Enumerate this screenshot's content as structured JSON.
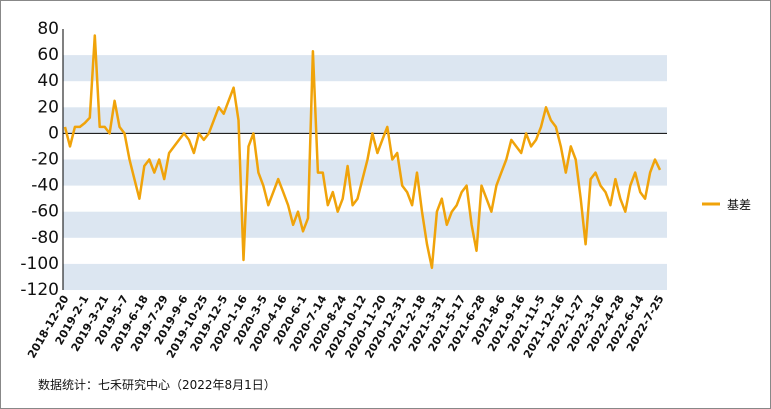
{
  "chart_data": {
    "type": "line",
    "source": "数据统计：七禾研究中心（2022年8月1日）",
    "categories": [
      "2018-12-20",
      null,
      null,
      null,
      "2019-2-1",
      null,
      null,
      null,
      "2019-3-21",
      null,
      null,
      null,
      "2019-5-7",
      null,
      null,
      null,
      "2019-6-18",
      null,
      null,
      null,
      "2019-7-29",
      null,
      null,
      null,
      "2019-9-6",
      null,
      null,
      null,
      "2019-10-25",
      null,
      null,
      null,
      "2019-12-5",
      null,
      null,
      null,
      "2020-1-16",
      null,
      null,
      null,
      "2020-3-5",
      null,
      null,
      null,
      "2020-4-16",
      null,
      null,
      null,
      "2020-6-1",
      null,
      null,
      null,
      "2020-7-14",
      null,
      null,
      null,
      "2020-8-24",
      null,
      null,
      null,
      "2020-10-12",
      null,
      null,
      null,
      "2020-11-20",
      null,
      null,
      null,
      "2020-12-31",
      null,
      null,
      null,
      "2021-2-18",
      null,
      null,
      null,
      "2021-3-31",
      null,
      null,
      null,
      "2021-5-17",
      null,
      null,
      null,
      "2021-6-28",
      null,
      null,
      null,
      "2021-8-6",
      null,
      null,
      null,
      "2021-9-16",
      null,
      null,
      null,
      "2021-11-5",
      null,
      null,
      null,
      "2021-12-16",
      null,
      null,
      null,
      "2022-1-27",
      null,
      null,
      null,
      "2022-3-16",
      null,
      null,
      null,
      "2022-4-28",
      null,
      null,
      null,
      "2022-6-14",
      null,
      null,
      null,
      "2022-7-25"
    ],
    "series": [
      {
        "name": "基差",
        "color": "#f0a30a",
        "values": [
          5,
          -10,
          5,
          5,
          8,
          12,
          75,
          5,
          5,
          0,
          25,
          5,
          0,
          -20,
          -35,
          -50,
          -25,
          -20,
          -30,
          -20,
          -35,
          -15,
          -10,
          -5,
          0,
          -5,
          -15,
          0,
          -5,
          0,
          10,
          20,
          15,
          25,
          35,
          10,
          -97,
          -10,
          0,
          -30,
          -40,
          -55,
          -45,
          -35,
          -45,
          -55,
          -70,
          -60,
          -75,
          -65,
          63,
          -30,
          -30,
          -55,
          -45,
          -60,
          -50,
          -25,
          -55,
          -50,
          -35,
          -20,
          0,
          -15,
          -5,
          5,
          -20,
          -15,
          -40,
          -45,
          -55,
          -30,
          -60,
          -85,
          -103,
          -60,
          -50,
          -70,
          -60,
          -55,
          -45,
          -40,
          -70,
          -90,
          -40,
          -50,
          -60,
          -40,
          -30,
          -20,
          -5,
          -10,
          -15,
          0,
          -10,
          -5,
          5,
          20,
          10,
          5,
          -10,
          -30,
          -10,
          -20,
          -50,
          -85,
          -35,
          -30,
          -40,
          -45,
          -55,
          -35,
          -50,
          -60,
          -40,
          -30,
          -45,
          -50,
          -30,
          -20,
          -28
        ]
      }
    ],
    "ylim": [
      -120,
      80
    ],
    "yticks": [
      -120,
      -100,
      -80,
      -60,
      -40,
      -20,
      0,
      20,
      40,
      60,
      80
    ],
    "band_color": "#dce6f1",
    "zero_line_color": "#000000",
    "legend": "right"
  }
}
